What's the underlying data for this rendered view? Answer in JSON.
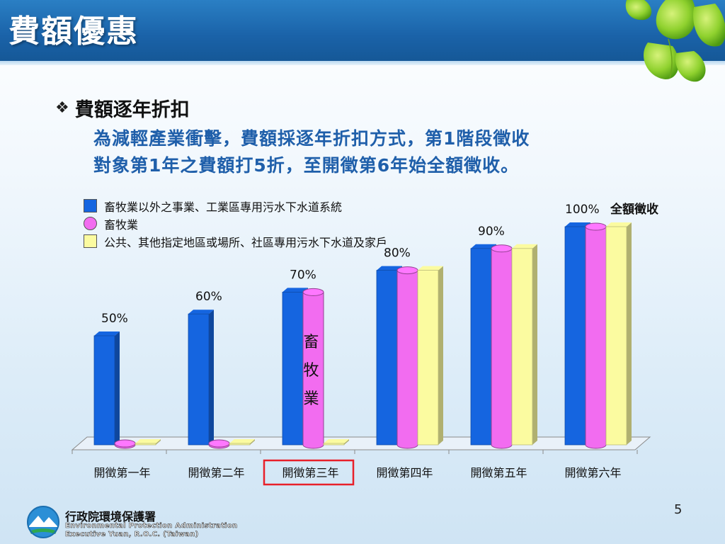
{
  "header": {
    "title": "費額優惠"
  },
  "bullet": {
    "icon": "diamond-bullet-icon",
    "text": "費額逐年折扣",
    "description_line1": "為減輕產業衝擊，費額採逐年折扣方式，第1階段徵收",
    "description_line2": "對象第1年之費額打5折，至開徵第6年始全額徵收。"
  },
  "chart_data": {
    "type": "bar",
    "categories": [
      "開徵第一年",
      "開徵第二年",
      "開徵第三年",
      "開徵第四年",
      "開徵第五年",
      "開徵第六年"
    ],
    "series": [
      {
        "name": "畜牧業以外之事業、工業區專用污水下水道系統",
        "shape": "box",
        "color": "#1565e0",
        "values": [
          50,
          60,
          70,
          80,
          90,
          100
        ]
      },
      {
        "name": "畜牧業",
        "shape": "cylinder",
        "color": "#f26cf0",
        "values": [
          0,
          0,
          70,
          80,
          90,
          100
        ]
      },
      {
        "name": "公共、其他指定地區或場所、社區專用污水下水道及家戶",
        "shape": "box",
        "color": "#fbfba0",
        "values": [
          0,
          0,
          0,
          80,
          90,
          100
        ]
      }
    ],
    "data_labels": [
      "50%",
      "60%",
      "70%",
      "80%",
      "90%",
      "100%"
    ],
    "data_label_series": 0,
    "extra_label": "全額徵收",
    "bar_annotation": {
      "category_index": 2,
      "series_index": 1,
      "text": [
        "畜",
        "牧",
        "業"
      ]
    },
    "highlighted_category_index": 2,
    "highlight_color": "#e8202a",
    "ylim": [
      0,
      100
    ],
    "legend_position": "top-left",
    "grid": false
  },
  "footer": {
    "org_name_cn": "行政院環境保護署",
    "org_name_en_line1": "Environmental Protection Administration",
    "org_name_en_line2": "Executive Yuan, R.O.C. (Taiwan)",
    "logo_icon": "epa-logo-icon",
    "page_number": "5"
  }
}
